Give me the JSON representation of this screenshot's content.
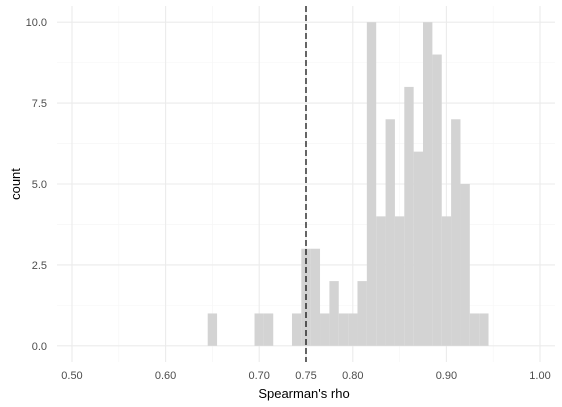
{
  "chart_data": {
    "type": "bar",
    "xlabel": "Spearman's rho",
    "ylabel": "count",
    "xlim": [
      0.484,
      1.016
    ],
    "ylim": [
      -0.5,
      10.5
    ],
    "x_ticks": [
      0.5,
      0.6,
      0.7,
      0.75,
      0.8,
      0.9,
      1.0
    ],
    "x_tick_labels": [
      "0.50",
      "0.60",
      "0.70",
      "0.75",
      "0.80",
      "0.90",
      "1.00"
    ],
    "y_ticks": [
      0,
      2.5,
      5,
      7.5,
      10
    ],
    "y_tick_labels": [
      "0.0",
      "2.5",
      "5.0",
      "7.5",
      "10.0"
    ],
    "bin_width": 0.01,
    "bins": [
      {
        "x": 0.65,
        "count": 1
      },
      {
        "x": 0.7,
        "count": 1
      },
      {
        "x": 0.71,
        "count": 1
      },
      {
        "x": 0.74,
        "count": 1
      },
      {
        "x": 0.75,
        "count": 3
      },
      {
        "x": 0.76,
        "count": 3
      },
      {
        "x": 0.77,
        "count": 1
      },
      {
        "x": 0.78,
        "count": 2
      },
      {
        "x": 0.79,
        "count": 1
      },
      {
        "x": 0.8,
        "count": 1
      },
      {
        "x": 0.81,
        "count": 2
      },
      {
        "x": 0.82,
        "count": 10
      },
      {
        "x": 0.83,
        "count": 4
      },
      {
        "x": 0.84,
        "count": 7
      },
      {
        "x": 0.85,
        "count": 4
      },
      {
        "x": 0.86,
        "count": 8
      },
      {
        "x": 0.87,
        "count": 6
      },
      {
        "x": 0.88,
        "count": 10
      },
      {
        "x": 0.89,
        "count": 9
      },
      {
        "x": 0.9,
        "count": 4
      },
      {
        "x": 0.91,
        "count": 7
      },
      {
        "x": 0.92,
        "count": 5
      },
      {
        "x": 0.93,
        "count": 1
      },
      {
        "x": 0.94,
        "count": 1
      }
    ],
    "reference_line": {
      "x": 0.75,
      "style": "dashed"
    },
    "grid": true,
    "legend": "none",
    "colors": {
      "bar_fill": "#d3d3d3",
      "grid": "#ebebeb",
      "reference_line": "#000000"
    }
  }
}
